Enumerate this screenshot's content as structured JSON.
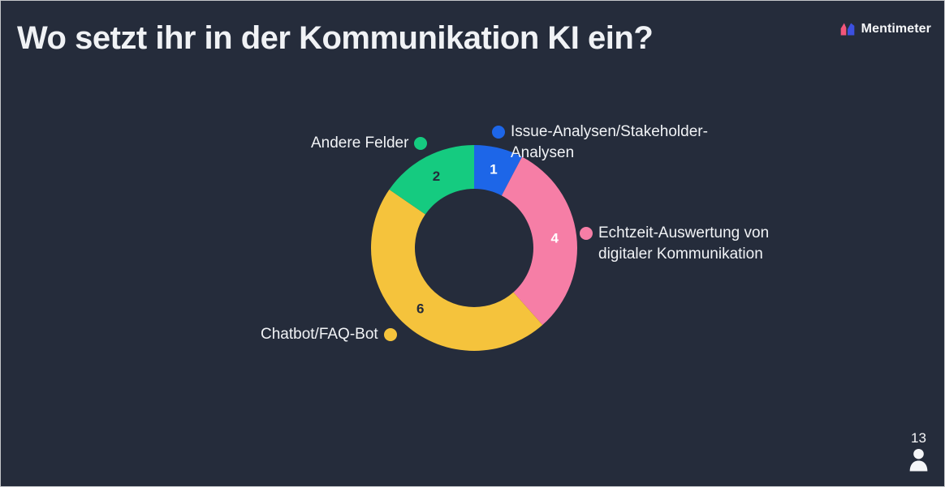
{
  "title": "Wo setzt ihr in der Kommunikation KI ein?",
  "brand": {
    "name": "Mentimeter"
  },
  "participants": {
    "count": "13"
  },
  "colors": {
    "background": "#252C3B",
    "text": "#F1F3F6",
    "blue": "#1D66E8",
    "pink": "#F67EA6",
    "yellow": "#F5C33C",
    "green": "#15CB80",
    "logo_pink": "#F2567B",
    "logo_blue": "#3C50E0"
  },
  "chart_data": {
    "type": "pie",
    "subtype": "donut",
    "title": "Wo setzt ihr in der Kommunikation KI ein?",
    "total_responses": 13,
    "start_angle_deg": -90,
    "direction": "clockwise",
    "legend_position": "around-slices",
    "slices": [
      {
        "label": "Issue-Analysen/Stakeholder-Analysen",
        "value": 1,
        "color": "#1D66E8",
        "value_color": "#FFFFFF"
      },
      {
        "label": "Echtzeit-Auswertung von digitaler Kommunikation",
        "value": 4,
        "color": "#F67EA6",
        "value_color": "#FFFFFF"
      },
      {
        "label": "Chatbot/FAQ-Bot",
        "value": 6,
        "color": "#F5C33C",
        "value_color": "#242B3A"
      },
      {
        "label": "Andere Felder",
        "value": 2,
        "color": "#15CB80",
        "value_color": "#242B3A"
      }
    ]
  }
}
